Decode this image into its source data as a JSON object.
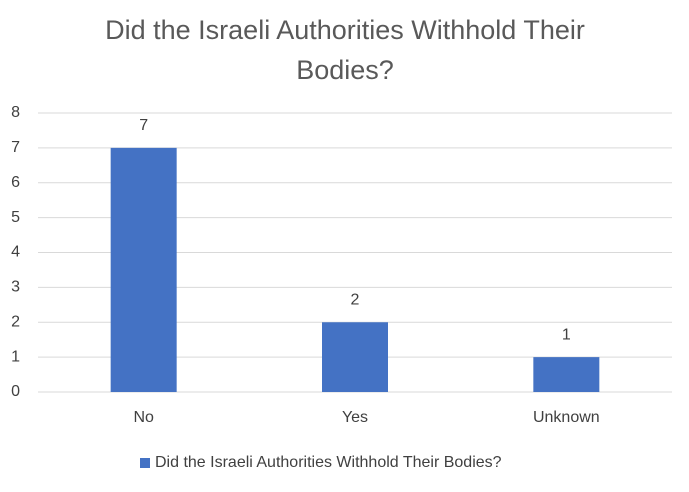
{
  "chart_data": {
    "type": "bar",
    "title": "Did the Israeli Authorities Withhold Their Bodies?",
    "categories": [
      "No",
      "Yes",
      "Unknown"
    ],
    "series": [
      {
        "name": "Did the Israeli Authorities Withhold Their Bodies?",
        "color": "#4472c4",
        "values": [
          7,
          2,
          1
        ]
      }
    ],
    "ylim": [
      0,
      8
    ],
    "yticks": [
      0,
      1,
      2,
      3,
      4,
      5,
      6,
      7,
      8
    ],
    "grid": true,
    "legend": "bottom"
  }
}
